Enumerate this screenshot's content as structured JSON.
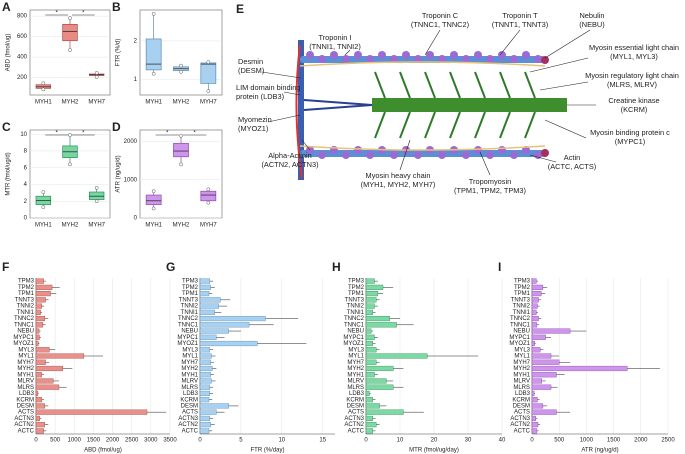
{
  "chart_data": [
    {
      "type": "box",
      "label": "A",
      "ylabel": "ABD (fmol/ug)",
      "categories": [
        "MYH1",
        "MYH2",
        "MYH7"
      ],
      "color": "#ea8a84",
      "stroke": "#a94a46",
      "boxes": [
        {
          "min": 85,
          "q1": 95,
          "median": 110,
          "q3": 130,
          "max": 145
        },
        {
          "min": 470,
          "q1": 560,
          "median": 650,
          "q3": 720,
          "max": 780
        },
        {
          "min": 205,
          "q1": 220,
          "median": 228,
          "q3": 235,
          "max": 245
        }
      ],
      "ylim": [
        30,
        860
      ],
      "yticks": [
        200,
        400,
        600,
        800
      ],
      "annotations": [
        "*",
        "*"
      ]
    },
    {
      "type": "box",
      "label": "B",
      "ylabel": "FTR (%/d)",
      "categories": [
        "MYH1",
        "MYH2",
        "MYH7"
      ],
      "color": "#a8d0f0",
      "stroke": "#5a8db5",
      "boxes": [
        {
          "min": 1.15,
          "q1": 1.25,
          "median": 1.4,
          "q3": 2.05,
          "max": 2.7
        },
        {
          "min": 1.2,
          "q1": 1.23,
          "median": 1.28,
          "q3": 1.33,
          "max": 1.36
        },
        {
          "min": 0.7,
          "q1": 0.9,
          "median": 1.4,
          "q3": 1.43,
          "max": 1.45
        }
      ],
      "ylim": [
        0.6,
        2.8
      ],
      "yticks": [
        1,
        2
      ]
    },
    {
      "type": "box",
      "label": "C",
      "ylabel": "MTR (fmol/ug/d)",
      "categories": [
        "MYH1",
        "MYH2",
        "MYH7"
      ],
      "color": "#76d8a0",
      "stroke": "#2f8e57",
      "boxes": [
        {
          "min": 1.3,
          "q1": 1.6,
          "median": 2.1,
          "q3": 2.6,
          "max": 3.1
        },
        {
          "min": 6.4,
          "q1": 7.2,
          "median": 7.9,
          "q3": 8.6,
          "max": 9.9
        },
        {
          "min": 2.0,
          "q1": 2.2,
          "median": 2.6,
          "q3": 3.1,
          "max": 3.6
        }
      ],
      "ylim": [
        0,
        10.5
      ],
      "yticks": [
        0,
        2,
        4,
        6,
        8,
        10
      ],
      "annotations": [
        "*",
        "*"
      ]
    },
    {
      "type": "box",
      "label": "D",
      "ylabel": "ATR (ng/ug/d)",
      "categories": [
        "MYH1",
        "MYH2",
        "MYH7"
      ],
      "color": "#cf95ec",
      "stroke": "#8a4bb0",
      "boxes": [
        {
          "min": 250,
          "q1": 350,
          "median": 450,
          "q3": 600,
          "max": 700
        },
        {
          "min": 1400,
          "q1": 1600,
          "median": 1750,
          "q3": 1950,
          "max": 2150
        },
        {
          "min": 400,
          "q1": 450,
          "median": 600,
          "q3": 700,
          "max": 750
        }
      ],
      "ylim": [
        0,
        2300
      ],
      "yticks": [
        0,
        1000,
        2000
      ],
      "annotations": [
        "*",
        "*"
      ]
    },
    {
      "type": "bar",
      "label": "F",
      "xlabel": "ABD (fmol/ug)",
      "color": "#e8918b",
      "stroke": "#a94a46",
      "categories": [
        "TPM3",
        "TPM2",
        "TPM1",
        "TNNT3",
        "TNNI2",
        "TNNI1",
        "TNNC2",
        "TNNC1",
        "NEBU",
        "MYPC1",
        "MYOZ1",
        "MYL3",
        "MYL1",
        "MYH7",
        "MYH2",
        "MYH1",
        "MLRV",
        "MLRS",
        "LDB3",
        "KCRM",
        "DESM",
        "ACTS",
        "ACTN3",
        "ACTN2",
        "ACTC"
      ],
      "values": [
        200,
        420,
        380,
        250,
        150,
        120,
        230,
        180,
        80,
        90,
        60,
        350,
        1250,
        250,
        700,
        150,
        450,
        600,
        50,
        150,
        230,
        2900,
        100,
        230,
        200
      ],
      "errors": [
        60,
        200,
        150,
        80,
        60,
        40,
        90,
        70,
        40,
        40,
        30,
        150,
        500,
        90,
        250,
        60,
        150,
        200,
        20,
        60,
        90,
        500,
        40,
        90,
        70
      ],
      "xlim": [
        0,
        3500
      ],
      "xticks": [
        0,
        500,
        1000,
        1500,
        2000,
        2500,
        3000,
        3500
      ]
    },
    {
      "type": "bar",
      "label": "G",
      "xlabel": "FTR (%/day)",
      "color": "#a8d0f0",
      "stroke": "#5a8db5",
      "categories": [
        "TPM3",
        "TPM2",
        "TPM1",
        "TNNT3",
        "TNNI2",
        "TNNI1",
        "TNNC2",
        "TNNC1",
        "NEBU",
        "MYPC1",
        "MYOZ1",
        "MYL3",
        "MYL1",
        "MYH7",
        "MYH2",
        "MYH1",
        "MLRV",
        "MLRS",
        "LDB3",
        "KCRM",
        "DESM",
        "ACTS",
        "ACTN3",
        "ACTN2",
        "ACTC"
      ],
      "values": [
        1.2,
        1.3,
        1.1,
        2.5,
        2.3,
        1.8,
        8,
        6,
        3.5,
        2,
        7,
        1.2,
        1.4,
        1.3,
        1.5,
        1.3,
        1.4,
        1.2,
        1.2,
        1.1,
        3.5,
        2,
        1.2,
        1.3,
        1.1
      ],
      "errors": [
        0.4,
        0.5,
        0.4,
        1.2,
        1,
        0.8,
        4,
        3,
        1.5,
        1,
        6,
        0.4,
        0.5,
        0.4,
        0.5,
        0.4,
        0.5,
        0.4,
        0.4,
        0.4,
        1.2,
        1,
        0.4,
        0.5,
        0.4
      ],
      "xlim": [
        0,
        16.5
      ],
      "xticks": [
        0,
        5,
        10,
        15
      ]
    },
    {
      "type": "bar",
      "label": "H",
      "xlabel": "MTR (fmol/ug/day)",
      "color": "#7cd9a4",
      "stroke": "#2f8e57",
      "categories": [
        "TPM3",
        "TPM2",
        "TPM1",
        "TNNT3",
        "TNNI2",
        "TNNI1",
        "TNNC2",
        "TNNC1",
        "NEBU",
        "MYPC1",
        "MYOZ1",
        "MYL3",
        "MYL1",
        "MYH7",
        "MYH2",
        "MYH1",
        "MLRV",
        "MLRS",
        "LDB3",
        "KCRM",
        "DESM",
        "ACTS",
        "ACTN3",
        "ACTN2",
        "ACTC"
      ],
      "values": [
        2.5,
        5,
        3.5,
        3,
        2.5,
        2,
        7,
        9,
        1.5,
        2.5,
        2,
        3,
        18,
        3,
        8,
        2.5,
        6,
        8,
        1,
        2,
        4,
        11,
        2,
        3,
        2
      ],
      "errors": [
        1,
        3,
        1.5,
        1,
        1,
        0.8,
        3,
        5,
        0.6,
        1,
        0.8,
        1,
        15,
        1,
        3,
        1,
        2,
        3,
        0.4,
        0.8,
        2,
        6,
        0.8,
        1,
        0.8
      ],
      "xlim": [
        0,
        40
      ],
      "xticks": [
        0,
        10,
        20,
        30,
        40
      ]
    },
    {
      "type": "bar",
      "label": "I",
      "xlabel": "ATR (ng/ug/d)",
      "color": "#cf95ec",
      "stroke": "#8a4bb0",
      "categories": [
        "TPM3",
        "TPM2",
        "TPM1",
        "TNNT3",
        "TNNI2",
        "TNNI1",
        "TNNC2",
        "TNNC1",
        "NEBU",
        "MYPC1",
        "MYOZ1",
        "MYL3",
        "MYL1",
        "MYH7",
        "MYH2",
        "MYH1",
        "MLRV",
        "MLRS",
        "LDB3",
        "KCRM",
        "DESM",
        "ACTS",
        "ACTN3",
        "ACTN2",
        "ACTC"
      ],
      "values": [
        80,
        200,
        170,
        120,
        100,
        80,
        120,
        90,
        700,
        250,
        50,
        150,
        350,
        500,
        1750,
        450,
        180,
        350,
        40,
        100,
        200,
        450,
        70,
        110,
        90
      ],
      "errors": [
        30,
        80,
        70,
        50,
        40,
        30,
        50,
        40,
        300,
        100,
        20,
        60,
        150,
        200,
        600,
        150,
        70,
        120,
        15,
        40,
        80,
        250,
        30,
        40,
        30
      ],
      "xlim": [
        0,
        2500
      ],
      "xticks": [
        0,
        500,
        1000,
        1500,
        2000,
        2500
      ]
    }
  ],
  "diagram": {
    "label": "E",
    "labels": [
      {
        "name": "Desmin",
        "genes": "(DESM)"
      },
      {
        "name": "Troponin I",
        "genes": "(TNNI1, TNNI2)"
      },
      {
        "name": "Troponin C",
        "genes": "(TNNC1, TNNC2)"
      },
      {
        "name": "Troponin T",
        "genes": "(TNNT1, TNNT3)"
      },
      {
        "name": "Nebulin",
        "genes": "(NEBU)"
      },
      {
        "name": "Myosin essential light chain",
        "genes": "(MYL1, MYL3)"
      },
      {
        "name": "Myosin regulatory light chain",
        "genes": "(MLRS, MLRV)"
      },
      {
        "name": "Creatine kinase",
        "genes": "(KCRM)"
      },
      {
        "name": "Myosin binding protein c",
        "genes": "(MYPC1)"
      },
      {
        "name": "Actin",
        "genes": "(ACTC, ACTS)"
      },
      {
        "name": "Tropomyosin",
        "genes": "(TPM1, TPM2, TPM3)"
      },
      {
        "name": "Myosin heavy chain",
        "genes": "(MYH1, MYH2, MYH7)"
      },
      {
        "name": "Alpha-Actinin",
        "genes": "(ACTN2, ACTN3)"
      },
      {
        "name": "Myomezin",
        "genes": "(MYOZ1)"
      },
      {
        "name": "LIM domain binding",
        "genes": "protein (LDB3)"
      }
    ]
  }
}
